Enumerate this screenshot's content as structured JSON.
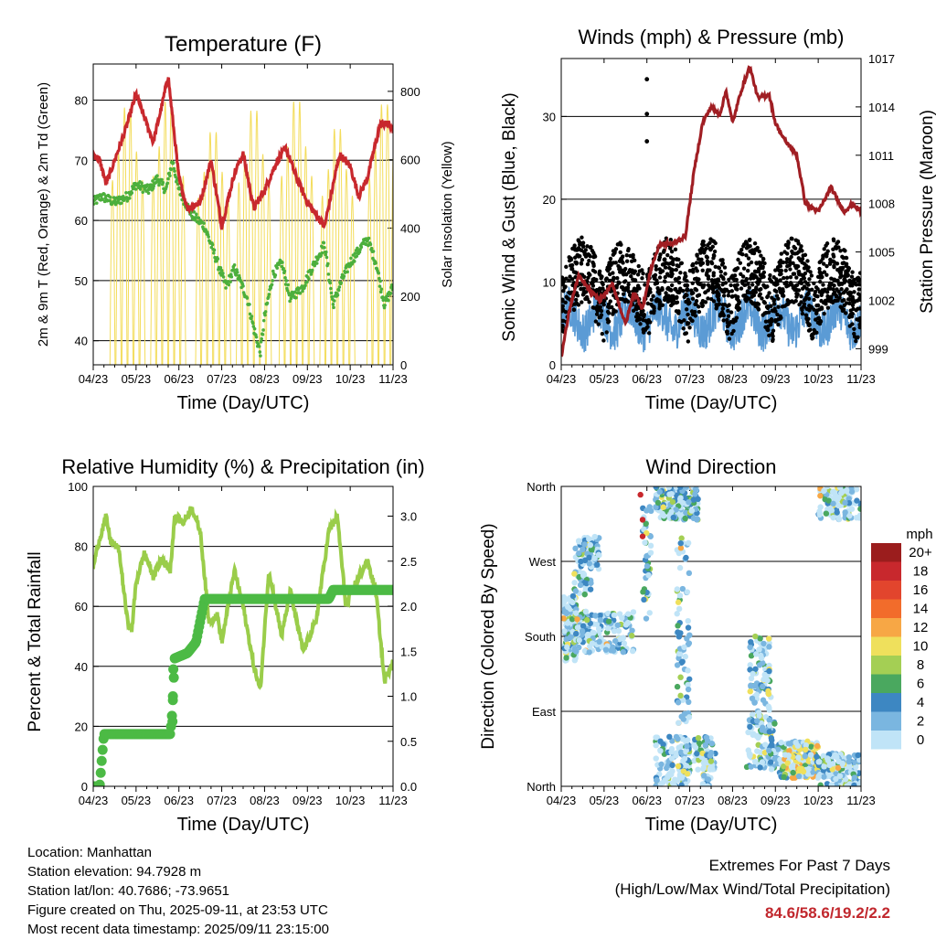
{
  "colors": {
    "red": "#c8282d",
    "green": "#4caf3c",
    "yellow": "#f3dc5a",
    "black": "#000000",
    "blue": "#5b9bd5",
    "maroon": "#a01e23",
    "rh": "#9acd4a",
    "rain": "#4cba45",
    "extreme_value": "#c1272d"
  },
  "time_ticks": [
    "04/23",
    "05/23",
    "06/23",
    "07/23",
    "08/23",
    "09/23",
    "10/23",
    "11/23"
  ],
  "chart_data": [
    {
      "id": "temperature",
      "type": "line",
      "title": "Temperature (F)",
      "xlabel": "Time (Day/UTC)",
      "ylabel": "2m & 9m T (Red, Orange) & 2m Td (Green)",
      "y2label": "Solar Insolation (Yellow)",
      "ylim": [
        36,
        86
      ],
      "yticks": [
        "40",
        "50",
        "60",
        "70",
        "80"
      ],
      "yticks_v": [
        40,
        50,
        60,
        70,
        80
      ],
      "y2lim": [
        0,
        880
      ],
      "y2ticks": [
        "0",
        "200",
        "400",
        "600",
        "800"
      ],
      "y2ticks_v": [
        0,
        200,
        400,
        600,
        800
      ],
      "xlim": [
        0,
        7
      ],
      "series": [
        {
          "name": "Temperature",
          "color": "red",
          "x": [
            0,
            0.15,
            0.3,
            0.5,
            0.75,
            1.0,
            1.2,
            1.4,
            1.6,
            1.75,
            2.0,
            2.2,
            2.5,
            2.75,
            3.0,
            3.3,
            3.5,
            3.75,
            4.0,
            4.3,
            4.5,
            4.75,
            5.0,
            5.4,
            5.75,
            6.0,
            6.2,
            6.4,
            6.7,
            6.9,
            7.0
          ],
          "y": [
            71,
            70,
            66,
            70,
            75,
            81,
            77,
            73,
            79,
            84,
            67,
            62,
            63,
            70,
            59,
            68,
            71,
            62,
            65,
            70,
            72,
            67,
            63,
            59,
            71,
            69,
            64,
            67,
            76,
            76,
            75
          ]
        },
        {
          "name": "Dew point",
          "color": "green",
          "x": [
            0,
            0.2,
            0.5,
            0.8,
            1.0,
            1.3,
            1.5,
            1.7,
            1.85,
            2.0,
            2.3,
            2.6,
            2.9,
            3.1,
            3.3,
            3.6,
            3.75,
            3.9,
            4.0,
            4.2,
            4.4,
            4.6,
            4.9,
            5.1,
            5.4,
            5.6,
            5.8,
            6.0,
            6.2,
            6.4,
            6.6,
            6.8,
            7.0
          ],
          "y": [
            63,
            64,
            63,
            64,
            66,
            65,
            67,
            65,
            70,
            65,
            61,
            59,
            53,
            49,
            52,
            47,
            42,
            38,
            44,
            51,
            53,
            47,
            49,
            52,
            56,
            46,
            50,
            53,
            55,
            57,
            53,
            46,
            49
          ]
        },
        {
          "name": "Solar insolation",
          "color": "yellow",
          "axis": "y2",
          "peaks": [
            [
              0.8,
              840
            ],
            [
              1.75,
              860
            ],
            [
              2.8,
              760
            ],
            [
              3.75,
              830
            ],
            [
              4.75,
              860
            ],
            [
              5.7,
              770
            ],
            [
              6.8,
              850
            ]
          ]
        }
      ]
    },
    {
      "id": "winds",
      "type": "scatter",
      "title": "Winds (mph) & Pressure (mb)",
      "xlabel": "Time (Day/UTC)",
      "ylabel": "Sonic Wind & Gust (Blue, Black)",
      "y2label": "Station Pressure (Maroon)",
      "ylim": [
        0,
        37
      ],
      "yticks": [
        "0",
        "10",
        "20",
        "30"
      ],
      "yticks_v": [
        0,
        10,
        20,
        30
      ],
      "y2lim": [
        998,
        1017
      ],
      "y2ticks": [
        "999",
        "1002",
        "1005",
        "1008",
        "1011",
        "1014",
        "1017"
      ],
      "y2ticks_v": [
        999,
        1002,
        1005,
        1008,
        1011,
        1014,
        1017
      ],
      "xlim": [
        0,
        7
      ],
      "series": [
        {
          "name": "Sonic wind",
          "color": "blue",
          "mean": 5,
          "spread": 5
        },
        {
          "name": "Gust",
          "color": "black",
          "mean": 10,
          "spread": 8
        },
        {
          "name": "Station pressure",
          "color": "maroon",
          "axis": "y2",
          "x": [
            0,
            0.2,
            0.4,
            0.7,
            0.9,
            1.2,
            1.5,
            1.7,
            1.9,
            2.1,
            2.3,
            2.6,
            2.9,
            3.1,
            3.3,
            3.5,
            3.7,
            3.85,
            4.0,
            4.2,
            4.4,
            4.6,
            4.85,
            5.0,
            5.2,
            5.5,
            5.7,
            6.0,
            6.3,
            6.6,
            6.8,
            7.0
          ],
          "y": [
            998.5,
            1001.5,
            1003.5,
            1002.5,
            1002,
            1003,
            1000.5,
            1002.5,
            1001.5,
            1004,
            1005.5,
            1005.5,
            1006,
            1010,
            1013,
            1014,
            1013.5,
            1015,
            1013,
            1015,
            1016.5,
            1014.5,
            1014.8,
            1013,
            1012,
            1011,
            1008,
            1007.5,
            1009,
            1007.5,
            1008,
            1007.5
          ]
        }
      ]
    },
    {
      "id": "humidity",
      "type": "line",
      "title": "Relative Humidity (%) & Precipitation (in)",
      "xlabel": "Time (Day/UTC)",
      "ylabel": "Percent & Total Rainfall",
      "ylim": [
        0,
        100
      ],
      "yticks": [
        "0",
        "20",
        "40",
        "60",
        "80",
        "100"
      ],
      "yticks_v": [
        0,
        20,
        40,
        60,
        80,
        100
      ],
      "y2lim": [
        0,
        3.33
      ],
      "y2ticks": [
        "0.0",
        "0.5",
        "1.0",
        "1.5",
        "2.0",
        "2.5",
        "3.0"
      ],
      "y2ticks_v": [
        0,
        0.5,
        1.0,
        1.5,
        2.0,
        2.5,
        3.0
      ],
      "xlim": [
        0,
        7
      ],
      "series": [
        {
          "name": "Relative humidity",
          "color": "rh",
          "x": [
            0,
            0.1,
            0.3,
            0.4,
            0.6,
            0.8,
            0.9,
            1.0,
            1.2,
            1.4,
            1.6,
            1.8,
            1.9,
            2.1,
            2.3,
            2.5,
            2.7,
            2.9,
            3.0,
            3.3,
            3.5,
            3.75,
            3.9,
            4.1,
            4.4,
            4.6,
            4.9,
            5.2,
            5.5,
            5.7,
            5.9,
            6.2,
            6.4,
            6.6,
            6.8,
            7.0
          ],
          "y": [
            73,
            80,
            90,
            82,
            79,
            55,
            52,
            68,
            78,
            70,
            76,
            72,
            90,
            88,
            93,
            85,
            55,
            57,
            48,
            72,
            60,
            40,
            32,
            72,
            50,
            65,
            45,
            55,
            85,
            90,
            60,
            70,
            75,
            65,
            35,
            42
          ]
        },
        {
          "name": "Total rainfall",
          "color": "rain",
          "axis": "y2",
          "x": [
            0,
            0.15,
            0.2,
            0.25,
            0.9,
            1.8,
            1.85,
            1.9,
            2.2,
            2.4,
            2.6,
            3.0,
            4.0,
            5.0,
            5.5,
            5.6,
            6.0,
            7.0
          ],
          "y": [
            0,
            0,
            0.3,
            0.58,
            0.58,
            0.58,
            0.85,
            1.42,
            1.48,
            1.6,
            2.08,
            2.08,
            2.08,
            2.08,
            2.08,
            2.18,
            2.18,
            2.18
          ]
        }
      ]
    },
    {
      "id": "direction",
      "type": "scatter",
      "title": "Wind Direction",
      "xlabel": "Time (Day/UTC)",
      "ylabel": "Direction (Colored By Speed)",
      "ylim": [
        0,
        360
      ],
      "yticks": [
        "North",
        "East",
        "South",
        "West",
        "North"
      ],
      "yticks_v": [
        0,
        90,
        180,
        270,
        360
      ],
      "xlim": [
        0,
        7
      ],
      "colorbar": {
        "title": "mph",
        "labels": [
          "20+",
          "18",
          "16",
          "14",
          "12",
          "10",
          "8",
          "6",
          "4",
          "2",
          "0"
        ],
        "colors": [
          "#9b1d1d",
          "#c8282d",
          "#e2452d",
          "#f26c2b",
          "#f7a745",
          "#efe05c",
          "#a4cf54",
          "#4aa85f",
          "#3d87c2",
          "#7ab6e0",
          "#c0e4f7"
        ]
      }
    }
  ],
  "info": {
    "location": "Location: Manhattan",
    "elevation": "Station elevation: 94.7928 m",
    "latlon": "Station lat/lon: 40.7686; -73.9651",
    "created": "Figure created on Thu, 2025-09-11, at 23:53 UTC",
    "timestamp": "Most recent data timestamp: 2025/09/11 23:15:00"
  },
  "extremes": {
    "line1": "Extremes For Past 7 Days",
    "line2": "(High/Low/Max Wind/Total Precipitation)",
    "values": "84.6/58.6/19.2/2.2"
  }
}
